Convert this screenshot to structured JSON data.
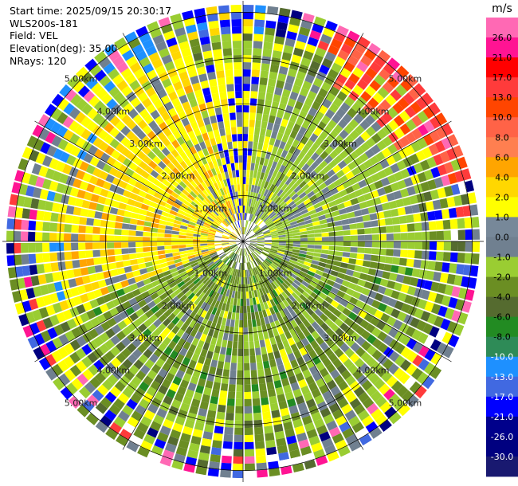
{
  "header": {
    "start_time": "Start time: 2025/09/15 20:30:17",
    "instrument": "WLS200s-181",
    "field": "Field: VEL",
    "elevation": "Elevation(deg): 35.00",
    "nrays": "NRays: 120"
  },
  "chart_data": {
    "type": "heatmap",
    "subtype": "PPI polar scan",
    "field": "VEL",
    "units": "m/s",
    "elevation_deg": 35.0,
    "n_rays": 120,
    "max_range_km": 5.25,
    "range_ring_labels": [
      "1.00km",
      "2.00km",
      "3.00km",
      "4.00km",
      "5.00km"
    ],
    "range_ring_km": [
      1,
      2,
      3,
      4,
      5
    ],
    "colorbar": {
      "label": "m/s",
      "ticks": [
        "26.0",
        "21.0",
        "17.0",
        "13.0",
        "10.0",
        "8.0",
        "6.0",
        "4.0",
        "2.0",
        "1.0",
        "0.0",
        "-1.0",
        "-2.0",
        "-4.0",
        "-6.0",
        "-8.0",
        "-10.0",
        "-13.0",
        "-17.0",
        "-21.0",
        "-26.0",
        "-30.0"
      ],
      "colors": [
        "#ff69b4",
        "#ff1493",
        "#ff0000",
        "#ff3b3b",
        "#ff4500",
        "#ff6347",
        "#ff7f50",
        "#ffa500",
        "#ffd700",
        "#ffff00",
        "#778899",
        "#708090",
        "#9acd32",
        "#6b8e23",
        "#556b2f",
        "#228b22",
        "#2e8b57",
        "#1e90ff",
        "#4169e1",
        "#0000ff",
        "#00008b",
        "#000080",
        "#191970"
      ]
    },
    "sectors": [
      {
        "from_deg": 0,
        "to_deg": 35,
        "dominant": "0.0 to -2.0 m/s",
        "outer_rim": "red/pink"
      },
      {
        "from_deg": 35,
        "to_deg": 100,
        "dominant": "-1.0 to -2.0 m/s"
      },
      {
        "from_deg": 100,
        "to_deg": 250,
        "dominant": "-2.0 to -4.0 m/s"
      },
      {
        "from_deg": 250,
        "to_deg": 345,
        "dominant": "2.0 to 6.0 m/s"
      },
      {
        "from_deg": 345,
        "to_deg": 360,
        "dominant": "4.0 m/s",
        "outer_rim": "blue"
      }
    ]
  }
}
